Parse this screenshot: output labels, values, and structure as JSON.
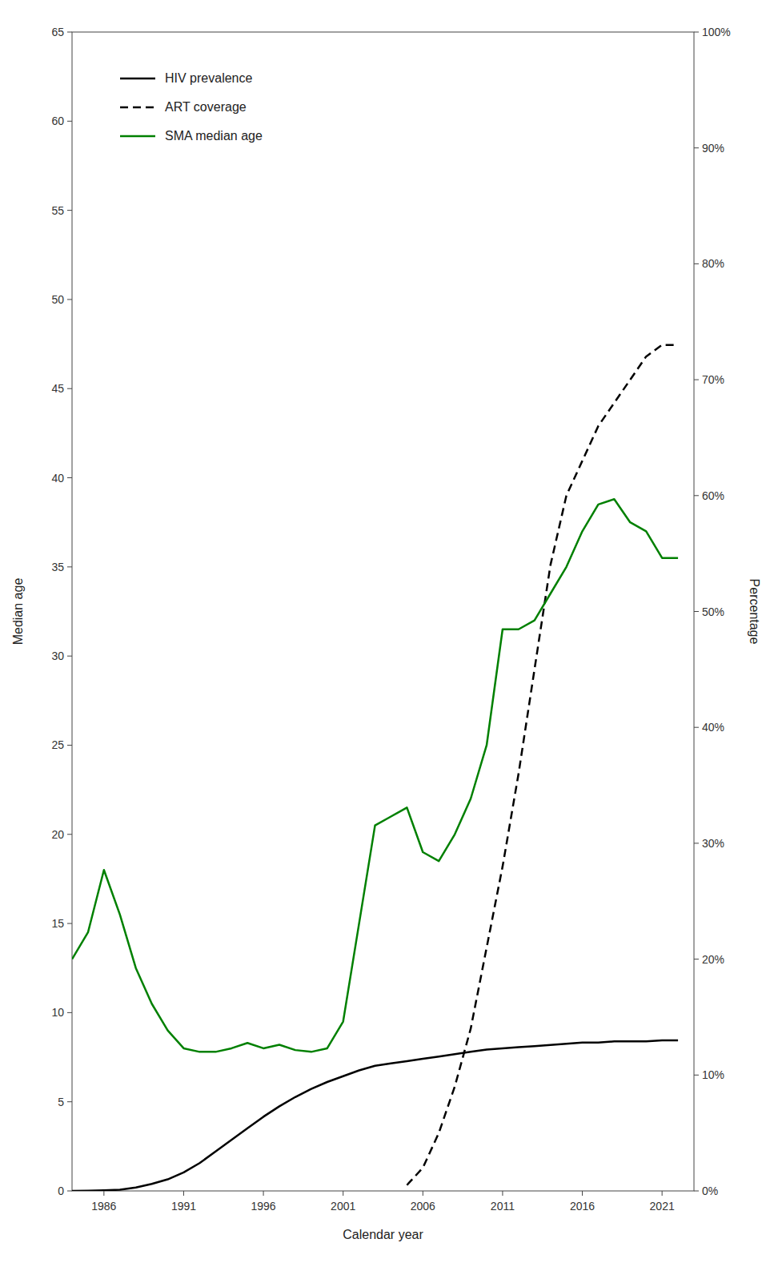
{
  "chart_data": {
    "type": "line",
    "xlabel": "Calendar year",
    "ylabel": "Median age",
    "y2label": "Percentage",
    "x": [
      1984,
      1985,
      1986,
      1987,
      1988,
      1989,
      1990,
      1991,
      1992,
      1993,
      1994,
      1995,
      1996,
      1997,
      1998,
      1999,
      2000,
      2001,
      2002,
      2003,
      2004,
      2005,
      2006,
      2007,
      2008,
      2009,
      2010,
      2011,
      2012,
      2013,
      2014,
      2015,
      2016,
      2017,
      2018,
      2019,
      2020,
      2021,
      2022
    ],
    "xlim": [
      1984,
      2023
    ],
    "xticks": [
      1986,
      1991,
      1996,
      2001,
      2006,
      2011,
      2016,
      2021
    ],
    "ylim": [
      0,
      65
    ],
    "yticks": [
      0,
      5,
      10,
      15,
      20,
      25,
      30,
      35,
      40,
      45,
      50,
      55,
      60,
      65
    ],
    "y2lim": [
      0,
      1.0
    ],
    "y2ticks": [
      {
        "value": 0.0,
        "label": "0%"
      },
      {
        "value": 0.1,
        "label": "10%"
      },
      {
        "value": 0.2,
        "label": "20%"
      },
      {
        "value": 0.3,
        "label": "30%"
      },
      {
        "value": 0.4,
        "label": "40%"
      },
      {
        "value": 0.5,
        "label": "50%"
      },
      {
        "value": 0.6,
        "label": "60%"
      },
      {
        "value": 0.7,
        "label": "70%"
      },
      {
        "value": 0.8,
        "label": "80%"
      },
      {
        "value": 0.9,
        "label": "90%"
      },
      {
        "value": 1.0,
        "label": "100%"
      }
    ],
    "grid": false,
    "legend": "upper left",
    "series": [
      {
        "name": "HIV prevalence",
        "color": "#000000",
        "line_style": "solid",
        "axis": "y2",
        "values": [
          0.0,
          0.0002,
          0.0005,
          0.001,
          0.003,
          0.006,
          0.01,
          0.016,
          0.024,
          0.034,
          0.044,
          0.054,
          0.064,
          0.073,
          0.081,
          0.088,
          0.094,
          0.099,
          0.104,
          0.108,
          0.11,
          0.112,
          0.114,
          0.116,
          0.118,
          0.12,
          0.122,
          0.123,
          0.124,
          0.125,
          0.126,
          0.127,
          0.128,
          0.128,
          0.129,
          0.129,
          0.129,
          0.13,
          0.13
        ]
      },
      {
        "name": "ART coverage",
        "color": "#000000",
        "line_style": "dashed",
        "axis": "y2",
        "values": [
          null,
          null,
          null,
          null,
          null,
          null,
          null,
          null,
          null,
          null,
          null,
          null,
          null,
          null,
          null,
          null,
          null,
          null,
          null,
          null,
          null,
          0.005,
          0.02,
          0.05,
          0.09,
          0.14,
          0.21,
          0.28,
          0.36,
          0.45,
          0.54,
          0.6,
          0.63,
          0.66,
          0.68,
          0.7,
          0.72,
          0.73,
          0.73
        ]
      },
      {
        "name": "SMA median age",
        "color": "#008000",
        "line_style": "solid",
        "axis": "y",
        "values": [
          13.0,
          14.5,
          18.0,
          15.5,
          12.5,
          10.5,
          9.0,
          8.0,
          7.8,
          7.8,
          8.0,
          8.3,
          8.0,
          8.2,
          7.9,
          7.8,
          8.0,
          9.5,
          15.0,
          20.5,
          21.0,
          21.5,
          19.0,
          18.5,
          20.0,
          22.0,
          25.0,
          31.5,
          31.5,
          32.0,
          33.5,
          35.0,
          37.0,
          38.5,
          38.8,
          37.5,
          37.0,
          35.5,
          35.5
        ]
      }
    ]
  }
}
